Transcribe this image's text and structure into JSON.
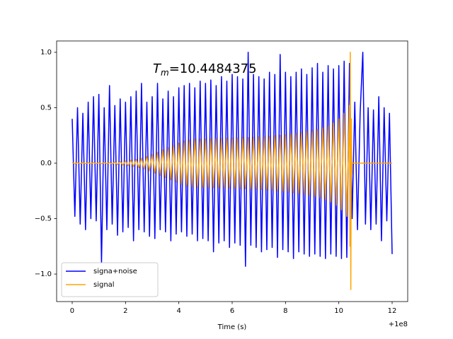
{
  "chart_data": {
    "type": "line",
    "xlabel": "Time (s)",
    "x_offset_label": "+1e8",
    "annotation": {
      "symbol": "T",
      "subscript": "m",
      "text": "=10.4484375"
    },
    "xlim": [
      -0.584,
      12.584
    ],
    "xticks": [
      0,
      2,
      4,
      6,
      8,
      10,
      12
    ],
    "ylim": [
      -1.248,
      1.102
    ],
    "yticks": [
      {
        "value": -1.0,
        "label": "−1.0"
      },
      {
        "value": -0.5,
        "label": "−0.5"
      },
      {
        "value": 0,
        "label": "0.0"
      },
      0.5,
      {
        "value": 1.0,
        "label": "1.0"
      }
    ],
    "legend": "lower left",
    "grid": false,
    "series": [
      {
        "name": "signa+noise",
        "color": "#0000ff",
        "x": [
          0,
          0.1,
          0.2,
          0.3,
          0.4,
          0.5,
          0.6,
          0.7,
          0.8,
          0.9,
          1,
          1.1,
          1.2,
          1.3,
          1.4,
          1.5,
          1.6,
          1.7,
          1.8,
          1.9,
          2,
          2.1,
          2.2,
          2.3,
          2.4,
          2.5,
          2.6,
          2.7,
          2.8,
          2.9,
          3,
          3.1,
          3.2,
          3.3,
          3.4,
          3.5,
          3.6,
          3.7,
          3.8,
          3.9,
          4,
          4.1,
          4.2,
          4.3,
          4.4,
          4.5,
          4.6,
          4.7,
          4.8,
          4.9,
          5,
          5.1,
          5.2,
          5.3,
          5.4,
          5.5,
          5.6,
          5.7,
          5.8,
          5.9,
          6,
          6.1,
          6.2,
          6.3,
          6.4,
          6.5,
          6.6,
          6.7,
          6.8,
          6.9,
          7,
          7.1,
          7.2,
          7.3,
          7.4,
          7.5,
          7.6,
          7.7,
          7.8,
          7.9,
          8,
          8.1,
          8.2,
          8.3,
          8.4,
          8.5,
          8.6,
          8.7,
          8.8,
          8.9,
          9,
          9.1,
          9.2,
          9.3,
          9.4,
          9.5,
          9.6,
          9.7,
          9.8,
          9.9,
          10,
          10.1,
          10.2,
          10.3,
          10.4,
          10.5,
          10.6,
          10.7,
          10.8,
          10.9,
          11,
          11.1,
          11.2,
          11.3,
          11.4,
          11.5,
          11.6,
          11.7,
          11.8,
          11.9,
          12
        ],
        "values": [
          0.4,
          -0.48,
          0.5,
          -0.55,
          0.45,
          -0.6,
          0.55,
          -0.5,
          0.6,
          -0.52,
          0.62,
          -0.9,
          0.5,
          -0.6,
          0.7,
          -0.55,
          0.52,
          -0.65,
          0.58,
          -0.62,
          0.55,
          -0.58,
          0.6,
          -0.7,
          0.65,
          -0.6,
          0.72,
          -0.62,
          0.55,
          -0.66,
          0.6,
          -0.68,
          0.72,
          -0.6,
          0.58,
          -0.62,
          0.65,
          -0.7,
          0.6,
          -0.64,
          0.68,
          -0.62,
          0.7,
          -0.66,
          0.72,
          -0.64,
          0.68,
          -0.7,
          0.74,
          -0.68,
          0.72,
          -0.7,
          0.75,
          -0.8,
          0.7,
          -0.72,
          0.78,
          -0.7,
          0.74,
          -0.76,
          0.8,
          -0.72,
          0.78,
          -0.74,
          0.76,
          -0.93,
          1.0,
          -0.74,
          0.8,
          -0.76,
          0.78,
          -0.8,
          0.76,
          -0.78,
          0.82,
          -0.76,
          0.8,
          -0.85,
          0.98,
          -0.78,
          0.82,
          -0.8,
          0.78,
          -0.86,
          0.82,
          -0.8,
          0.85,
          -0.82,
          0.8,
          -0.84,
          0.86,
          -0.82,
          0.9,
          -0.84,
          0.82,
          -0.86,
          0.88,
          -0.82,
          0.85,
          -0.84,
          0.88,
          -0.86,
          0.92,
          -0.85,
          0.9,
          -0.5,
          0.55,
          -0.6,
          0.45,
          1.0,
          -0.55,
          0.5,
          -0.6,
          0.48,
          -0.55,
          0.6,
          -0.7,
          0.5,
          -0.52,
          0.45,
          -0.82
        ]
      },
      {
        "name": "signal",
        "color": "#ffa500",
        "x": [
          0,
          0.1,
          0.2,
          0.3,
          0.4,
          0.5,
          0.6,
          0.7,
          0.8,
          0.9,
          1,
          1.1,
          1.2,
          1.3,
          1.4,
          1.5,
          1.6,
          1.7,
          1.8,
          1.9,
          2,
          2.1,
          2.2,
          2.3,
          2.4,
          2.5,
          2.6,
          2.7,
          2.8,
          2.9,
          3,
          3.1,
          3.2,
          3.3,
          3.4,
          3.5,
          3.6,
          3.7,
          3.8,
          3.9,
          4,
          4.1,
          4.2,
          4.3,
          4.4,
          4.5,
          4.6,
          4.7,
          4.8,
          4.9,
          5,
          5.1,
          5.2,
          5.3,
          5.4,
          5.5,
          5.6,
          5.7,
          5.8,
          5.9,
          6,
          6.1,
          6.2,
          6.3,
          6.4,
          6.5,
          6.6,
          6.7,
          6.8,
          6.9,
          7,
          7.1,
          7.2,
          7.3,
          7.4,
          7.5,
          7.6,
          7.7,
          7.8,
          7.9,
          8,
          8.1,
          8.2,
          8.3,
          8.4,
          8.5,
          8.6,
          8.7,
          8.8,
          8.9,
          9,
          9.1,
          9.2,
          9.3,
          9.4,
          9.5,
          9.6,
          9.7,
          9.8,
          9.9,
          10,
          10.1,
          10.2,
          10.3,
          10.4,
          10.42,
          10.43,
          10.45,
          10.47,
          10.49,
          10.5,
          12
        ],
        "values": [
          0.005,
          -0.005,
          0.005,
          -0.005,
          0.005,
          -0.005,
          0.005,
          -0.005,
          0.005,
          -0.005,
          0.005,
          -0.005,
          0.005,
          -0.005,
          0.005,
          -0.01,
          0.011,
          -0.013,
          0.015,
          -0.017,
          0.02,
          -0.023,
          0.027,
          -0.031,
          0.035,
          -0.04,
          0.046,
          -0.053,
          0.06,
          -0.07,
          0.08,
          -0.09,
          0.1,
          -0.11,
          0.12,
          -0.13,
          0.14,
          -0.15,
          0.16,
          -0.17,
          0.18,
          -0.19,
          0.2,
          -0.205,
          0.21,
          -0.212,
          0.215,
          -0.217,
          0.218,
          -0.219,
          0.22,
          -0.221,
          0.221,
          -0.222,
          0.222,
          -0.223,
          0.223,
          -0.224,
          0.224,
          -0.225,
          0.226,
          -0.227,
          0.228,
          -0.229,
          0.23,
          -0.231,
          0.232,
          -0.233,
          0.234,
          -0.235,
          0.237,
          -0.238,
          0.24,
          -0.242,
          0.244,
          -0.246,
          0.248,
          -0.25,
          0.252,
          -0.255,
          0.258,
          -0.261,
          0.264,
          -0.267,
          0.27,
          -0.274,
          0.278,
          -0.282,
          0.286,
          -0.29,
          0.295,
          -0.3,
          0.306,
          -0.312,
          0.32,
          -0.33,
          0.34,
          -0.35,
          0.365,
          -0.38,
          0.4,
          -0.42,
          0.45,
          -0.48,
          0.52,
          -0.75,
          1.0,
          -1.14,
          0.4,
          -0.1,
          0,
          0
        ]
      }
    ]
  }
}
